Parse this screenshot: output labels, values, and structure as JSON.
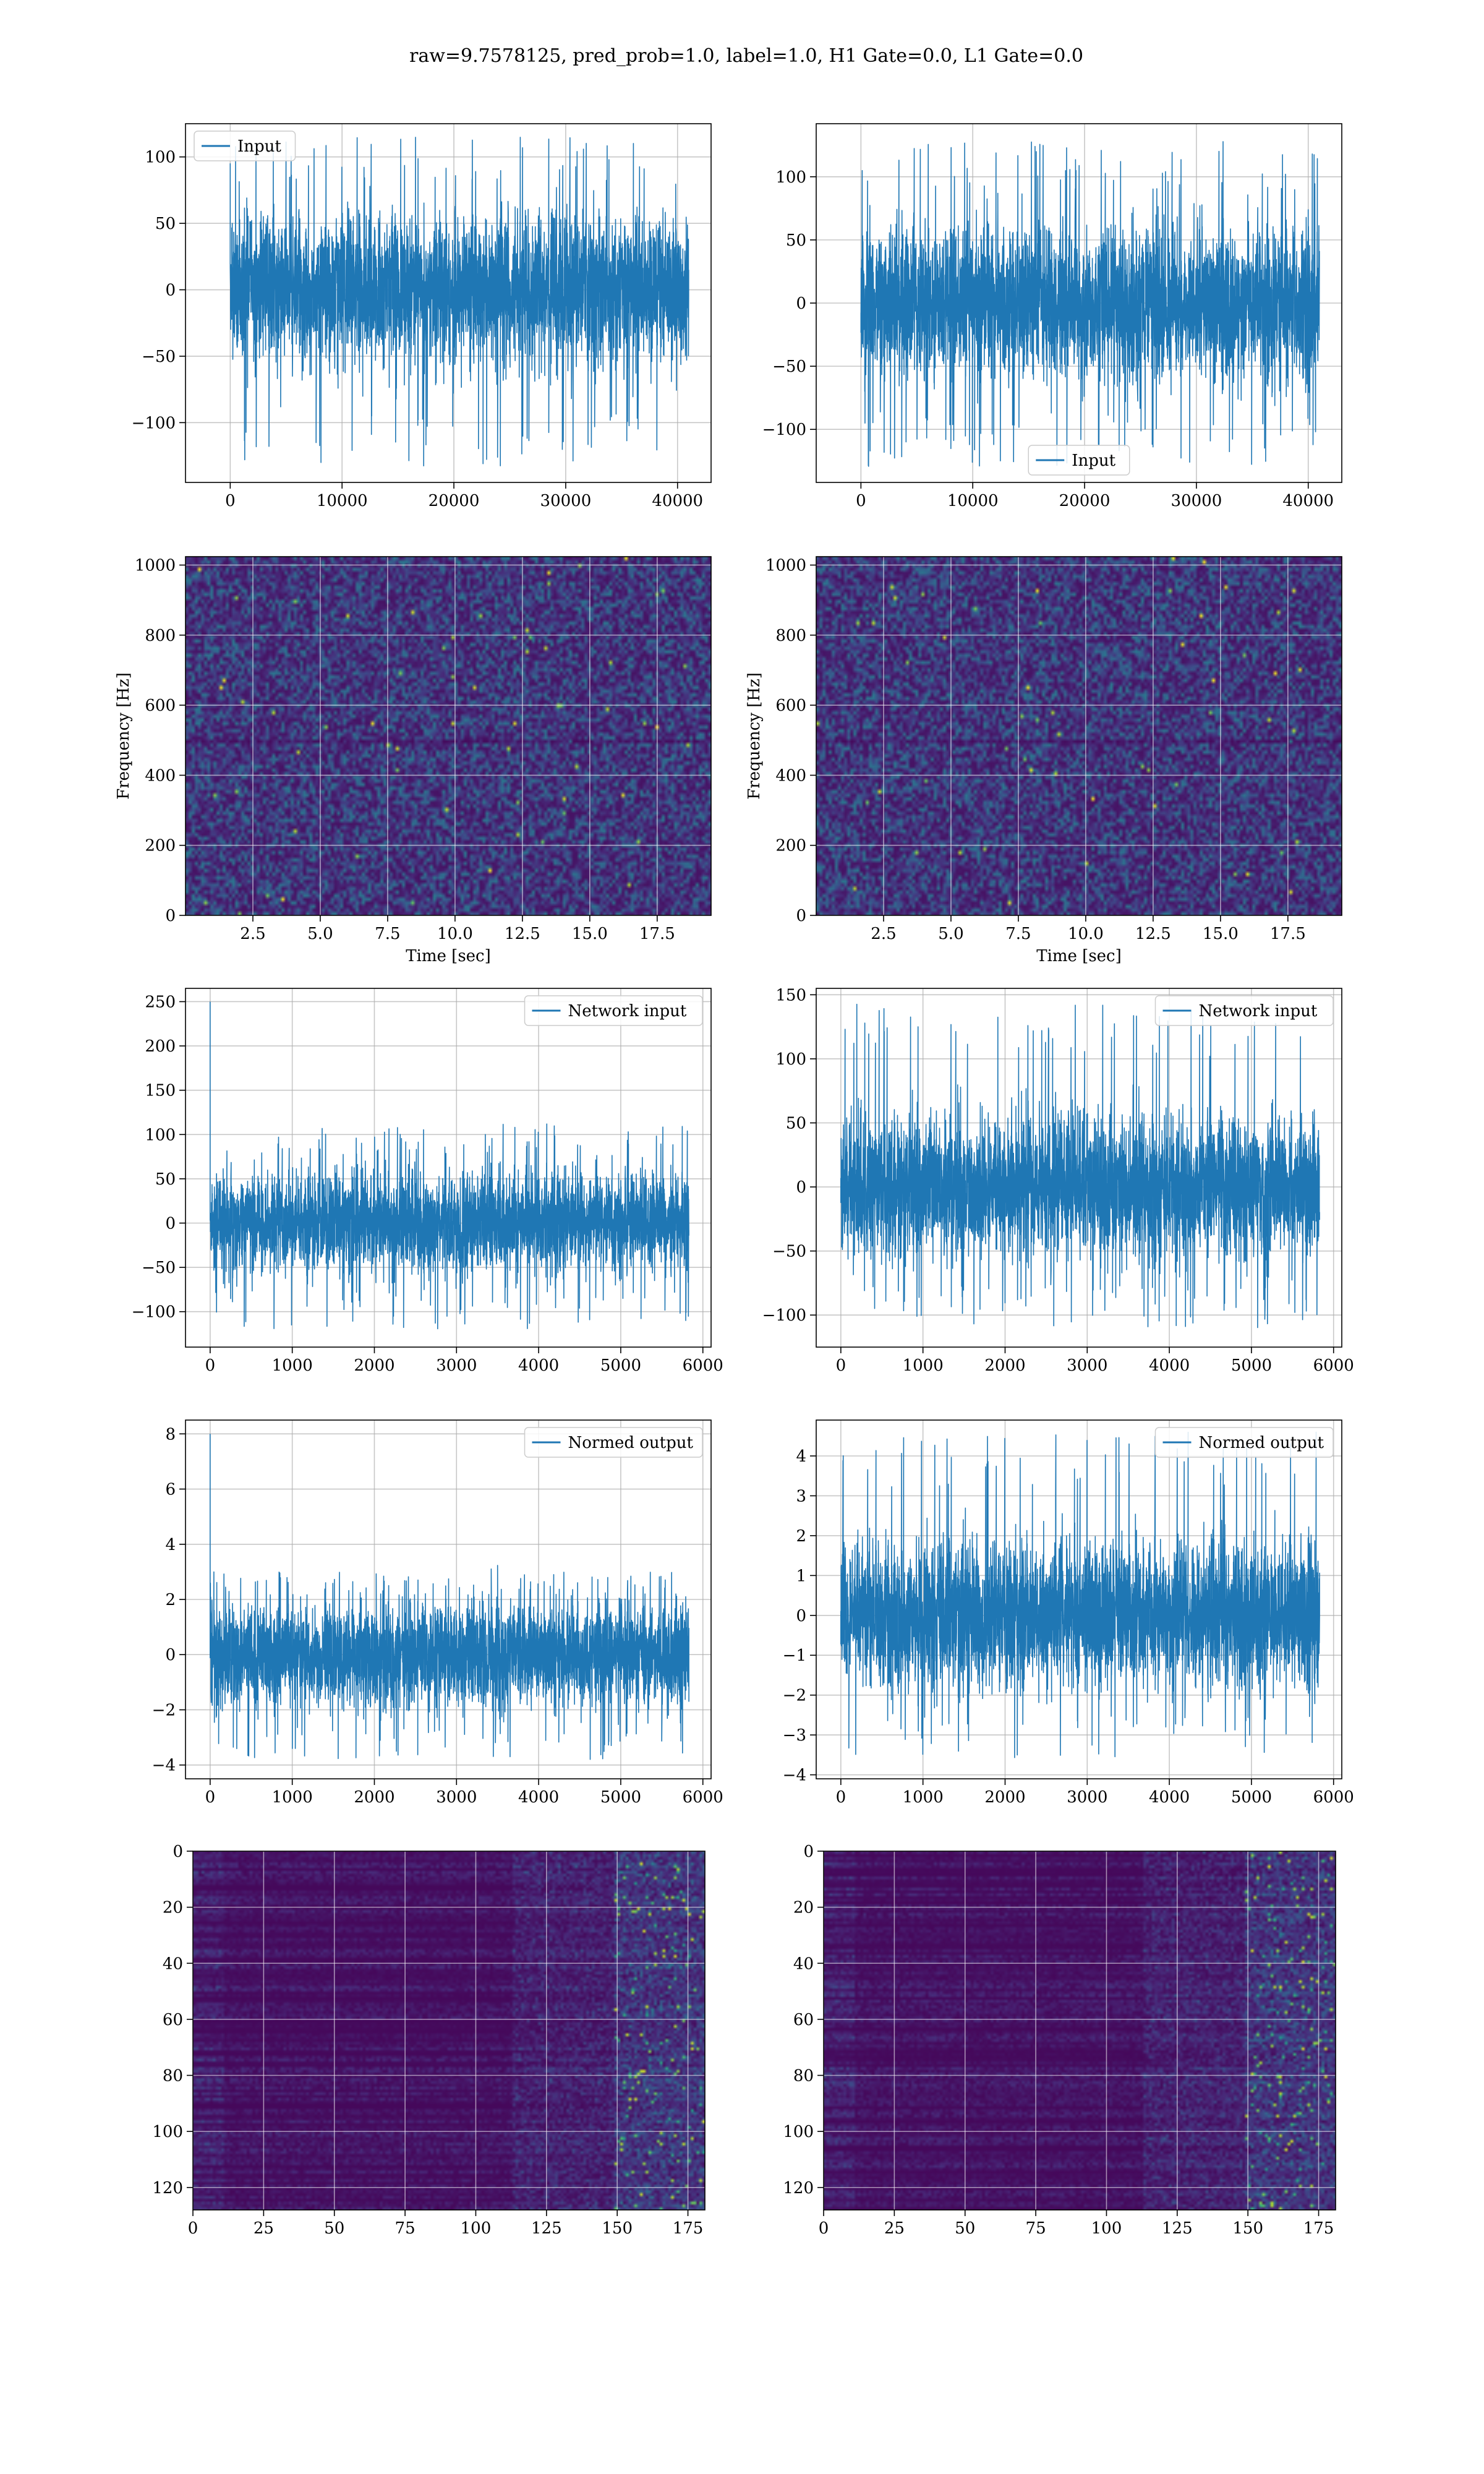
{
  "figure_title": "raw=9.7578125, pred_prob=1.0, label=1.0, H1 Gate=0.0, L1 Gate=0.0",
  "colors": {
    "series": "#1f77b4",
    "grid": "#b0b0b0",
    "viridis_dark": "#440154",
    "viridis_mid": "#21918c",
    "viridis_bright": "#fde725"
  },
  "chart_data": [
    {
      "id": "input-h1",
      "type": "line",
      "legend": [
        "Input"
      ],
      "legend_loc": "upper-left",
      "xlim": [
        -4000,
        43000
      ],
      "ylim": [
        -145,
        125
      ],
      "xticks": [
        0,
        10000,
        20000,
        30000,
        40000
      ],
      "xtick_labels": [
        "0",
        "10000",
        "20000",
        "30000",
        "40000"
      ],
      "yticks": [
        -100,
        -50,
        0,
        50,
        100
      ],
      "ytick_labels": [
        "−100",
        "−50",
        "0",
        "50",
        "100"
      ],
      "xlabel": "",
      "ylabel": "",
      "signal": {
        "x_start": 0,
        "x_end": 41000,
        "noise_amp": 30,
        "peak_max": 115,
        "peak_min": -133,
        "spike": null
      }
    },
    {
      "id": "input-l1",
      "type": "line",
      "legend": [
        "Input"
      ],
      "legend_loc": "lower-center",
      "xlim": [
        -4000,
        43000
      ],
      "ylim": [
        -142,
        142
      ],
      "xticks": [
        0,
        10000,
        20000,
        30000,
        40000
      ],
      "xtick_labels": [
        "0",
        "10000",
        "20000",
        "30000",
        "40000"
      ],
      "yticks": [
        -100,
        -50,
        0,
        50,
        100
      ],
      "ytick_labels": [
        "−100",
        "−50",
        "0",
        "50",
        "100"
      ],
      "xlabel": "",
      "ylabel": "",
      "signal": {
        "x_start": 0,
        "x_end": 41000,
        "noise_amp": 32,
        "peak_max": 128,
        "peak_min": -130,
        "spike": null
      }
    },
    {
      "id": "spec-h1",
      "type": "heatmap",
      "xlim": [
        0,
        19.5
      ],
      "ylim": [
        0,
        1024
      ],
      "xticks": [
        2.5,
        5.0,
        7.5,
        10.0,
        12.5,
        15.0,
        17.5
      ],
      "xtick_labels": [
        "2.5",
        "5.0",
        "7.5",
        "10.0",
        "12.5",
        "15.0",
        "17.5"
      ],
      "yticks": [
        0,
        200,
        400,
        600,
        800,
        1000
      ],
      "ytick_labels": [
        "0",
        "200",
        "400",
        "600",
        "800",
        "1000"
      ],
      "xlabel": "Time [sec]",
      "ylabel": "Frequency [Hz]",
      "cmap": "viridis"
    },
    {
      "id": "spec-l1",
      "type": "heatmap",
      "xlim": [
        0,
        19.5
      ],
      "ylim": [
        0,
        1024
      ],
      "xticks": [
        2.5,
        5.0,
        7.5,
        10.0,
        12.5,
        15.0,
        17.5
      ],
      "xtick_labels": [
        "2.5",
        "5.0",
        "7.5",
        "10.0",
        "12.5",
        "15.0",
        "17.5"
      ],
      "yticks": [
        0,
        200,
        400,
        600,
        800,
        1000
      ],
      "ytick_labels": [
        "0",
        "200",
        "400",
        "600",
        "800",
        "1000"
      ],
      "xlabel": "Time [sec]",
      "ylabel": "Frequency [Hz]",
      "cmap": "viridis"
    },
    {
      "id": "net-h1",
      "type": "line",
      "legend": [
        "Network input"
      ],
      "legend_loc": "upper-right",
      "xlim": [
        -300,
        6100
      ],
      "ylim": [
        -140,
        265
      ],
      "xticks": [
        0,
        1000,
        2000,
        3000,
        4000,
        5000,
        6000
      ],
      "xtick_labels": [
        "0",
        "1000",
        "2000",
        "3000",
        "4000",
        "5000",
        "6000"
      ],
      "yticks": [
        -100,
        -50,
        0,
        50,
        100,
        150,
        200,
        250
      ],
      "ytick_labels": [
        "−100",
        "−50",
        "0",
        "50",
        "100",
        "150",
        "200",
        "250"
      ],
      "xlabel": "",
      "ylabel": "",
      "signal": {
        "x_start": 0,
        "x_end": 5830,
        "noise_amp": 30,
        "peak_max": 112,
        "peak_min": -120,
        "spike": 250
      }
    },
    {
      "id": "net-l1",
      "type": "line",
      "legend": [
        "Network input"
      ],
      "legend_loc": "upper-right",
      "xlim": [
        -300,
        6100
      ],
      "ylim": [
        -125,
        155
      ],
      "xticks": [
        0,
        1000,
        2000,
        3000,
        4000,
        5000,
        6000
      ],
      "xtick_labels": [
        "0",
        "1000",
        "2000",
        "3000",
        "4000",
        "5000",
        "6000"
      ],
      "yticks": [
        -100,
        -50,
        0,
        50,
        100,
        150
      ],
      "ytick_labels": [
        "−100",
        "−50",
        "0",
        "50",
        "100",
        "150"
      ],
      "xlabel": "",
      "ylabel": "",
      "signal": {
        "x_start": 0,
        "x_end": 5830,
        "noise_amp": 30,
        "peak_max": 143,
        "peak_min": -110,
        "spike": null
      }
    },
    {
      "id": "norm-h1",
      "type": "line",
      "legend": [
        "Normed output"
      ],
      "legend_loc": "upper-right",
      "xlim": [
        -300,
        6100
      ],
      "ylim": [
        -4.5,
        8.5
      ],
      "xticks": [
        0,
        1000,
        2000,
        3000,
        4000,
        5000,
        6000
      ],
      "xtick_labels": [
        "0",
        "1000",
        "2000",
        "3000",
        "4000",
        "5000",
        "6000"
      ],
      "yticks": [
        -4,
        -2,
        0,
        2,
        4,
        6,
        8
      ],
      "ytick_labels": [
        "−4",
        "−2",
        "0",
        "2",
        "4",
        "6",
        "8"
      ],
      "xlabel": "",
      "ylabel": "",
      "signal": {
        "x_start": 0,
        "x_end": 5830,
        "noise_amp": 1.0,
        "peak_max": 3.0,
        "peak_min": -3.8,
        "spike": 8.0
      }
    },
    {
      "id": "norm-l1",
      "type": "line",
      "legend": [
        "Normed output"
      ],
      "legend_loc": "upper-right",
      "xlim": [
        -300,
        6100
      ],
      "ylim": [
        -4.1,
        4.9
      ],
      "xticks": [
        0,
        1000,
        2000,
        3000,
        4000,
        5000,
        6000
      ],
      "xtick_labels": [
        "0",
        "1000",
        "2000",
        "3000",
        "4000",
        "5000",
        "6000"
      ],
      "yticks": [
        -4,
        -3,
        -2,
        -1,
        0,
        1,
        2,
        3,
        4
      ],
      "ytick_labels": [
        "−4",
        "−3",
        "−2",
        "−1",
        "0",
        "1",
        "2",
        "3",
        "4"
      ],
      "xlabel": "",
      "ylabel": "",
      "signal": {
        "x_start": 0,
        "x_end": 5830,
        "noise_amp": 1.0,
        "peak_max": 4.6,
        "peak_min": -3.6,
        "spike": null
      }
    },
    {
      "id": "feat-h1",
      "type": "heatmap",
      "xlim": [
        0,
        181
      ],
      "ylim": [
        128,
        0
      ],
      "xticks": [
        0,
        25,
        50,
        75,
        100,
        125,
        150,
        175
      ],
      "xtick_labels": [
        "0",
        "25",
        "50",
        "75",
        "100",
        "125",
        "150",
        "175"
      ],
      "yticks": [
        0,
        20,
        40,
        60,
        80,
        100,
        120
      ],
      "ytick_labels": [
        "0",
        "20",
        "40",
        "60",
        "80",
        "100",
        "120"
      ],
      "xlabel": "",
      "ylabel": "",
      "cmap": "viridis"
    },
    {
      "id": "feat-l1",
      "type": "heatmap",
      "xlim": [
        0,
        181
      ],
      "ylim": [
        128,
        0
      ],
      "xticks": [
        0,
        25,
        50,
        75,
        100,
        125,
        150,
        175
      ],
      "xtick_labels": [
        "0",
        "25",
        "50",
        "75",
        "100",
        "125",
        "150",
        "175"
      ],
      "yticks": [
        0,
        20,
        40,
        60,
        80,
        100,
        120
      ],
      "ytick_labels": [
        "0",
        "20",
        "40",
        "60",
        "80",
        "100",
        "120"
      ],
      "xlabel": "",
      "ylabel": "",
      "cmap": "viridis"
    }
  ]
}
